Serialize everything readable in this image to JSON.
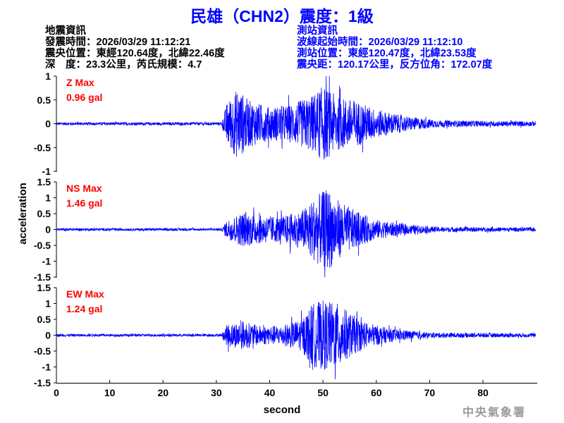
{
  "header": {
    "title": "民雄（CHN2）震度：1級",
    "earthquake": {
      "heading": "地震資訊",
      "origin_time": "發震時間：2026/03/29 11:12:21",
      "epicenter": "震央位置：東經120.64度，北緯22.46度",
      "depth_magnitude": "深　度：23.3公里，芮氏規模：4.7"
    },
    "station": {
      "heading": "測站資訊",
      "start_time": "波線起始時間：2026/03/29 11:12:10",
      "location": "測站位置：東經120.47度，北緯23.53度",
      "distance": "震央距：120.17公里，反方位角：172.07度"
    }
  },
  "watermark": "中央氣象署",
  "colors": {
    "trace": "#0000ff",
    "max_label": "#ff0000",
    "title": "#0000ff"
  },
  "chart_data": {
    "type": "line",
    "xlabel": "second",
    "ylabel": "acceleration",
    "xlim": [
      0,
      90
    ],
    "xticks": [
      "0",
      "10",
      "20",
      "30",
      "40",
      "50",
      "60",
      "70",
      "80"
    ],
    "grid": false,
    "series": [
      {
        "name": "Z",
        "label": "Z Max",
        "max": "0.96 gal",
        "ylim": [
          -1,
          1
        ],
        "yticks": [
          "1",
          "0.5",
          "0",
          "-0.5",
          "-1"
        ],
        "envelope": [
          [
            0,
            0.03
          ],
          [
            31,
            0.03
          ],
          [
            32,
            0.45
          ],
          [
            34,
            0.75
          ],
          [
            36,
            0.5
          ],
          [
            40,
            0.35
          ],
          [
            44,
            0.4
          ],
          [
            48,
            0.6
          ],
          [
            50,
            0.8
          ],
          [
            53,
            0.55
          ],
          [
            56,
            0.5
          ],
          [
            60,
            0.3
          ],
          [
            66,
            0.15
          ],
          [
            72,
            0.07
          ],
          [
            90,
            0.05
          ]
        ]
      },
      {
        "name": "NS",
        "label": "NS Max",
        "max": "1.46 gal",
        "ylim": [
          -1.5,
          1.5
        ],
        "yticks": [
          "1.5",
          "1",
          "0.5",
          "0",
          "-0.5",
          "-1",
          "-1.5"
        ],
        "envelope": [
          [
            0,
            0.04
          ],
          [
            31,
            0.04
          ],
          [
            32,
            0.3
          ],
          [
            35,
            0.55
          ],
          [
            38,
            0.45
          ],
          [
            42,
            0.4
          ],
          [
            46,
            0.6
          ],
          [
            49,
            1.1
          ],
          [
            51,
            1.3
          ],
          [
            53,
            0.9
          ],
          [
            56,
            0.6
          ],
          [
            60,
            0.3
          ],
          [
            66,
            0.15
          ],
          [
            72,
            0.08
          ],
          [
            90,
            0.06
          ]
        ]
      },
      {
        "name": "EW",
        "label": "EW Max",
        "max": "1.24 gal",
        "ylim": [
          -1.5,
          1.5
        ],
        "yticks": [
          "1.5",
          "1",
          "0.5",
          "0",
          "-0.5",
          "-1",
          "-1.5"
        ],
        "envelope": [
          [
            0,
            0.04
          ],
          [
            31,
            0.04
          ],
          [
            32,
            0.35
          ],
          [
            35,
            0.45
          ],
          [
            38,
            0.3
          ],
          [
            42,
            0.3
          ],
          [
            46,
            0.5
          ],
          [
            48,
            1.0
          ],
          [
            50,
            1.1
          ],
          [
            53,
            1.0
          ],
          [
            55,
            0.7
          ],
          [
            58,
            0.4
          ],
          [
            63,
            0.2
          ],
          [
            70,
            0.08
          ],
          [
            90,
            0.06
          ]
        ]
      }
    ]
  }
}
